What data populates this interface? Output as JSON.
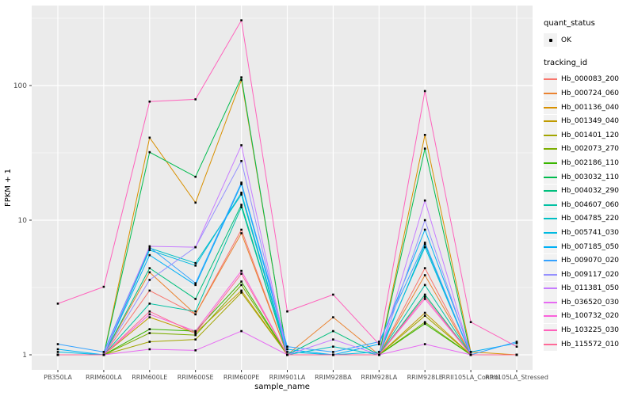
{
  "chart_data": {
    "type": "line",
    "title": "",
    "xlabel": "sample_name",
    "ylabel": "FPKM + 1",
    "y_scale": "log10",
    "y_ticks": [
      "1",
      "10",
      "100"
    ],
    "y_tick_values": [
      1,
      10,
      100
    ],
    "y_minor_values": [
      3.162,
      31.62,
      316.2
    ],
    "ylim_hint": [
      0.77,
      390
    ],
    "grid": true,
    "legend_position": "right",
    "categories": [
      "PB350LA",
      "RRIM600LA",
      "RRIM600LE",
      "RRIM600SE",
      "RRIM600PE",
      "RRIM901LA",
      "RRIM928BA",
      "RRIM928LA",
      "RRIM928LE",
      "RRII105LA_Control",
      "RRII105LA_Stressed"
    ],
    "series": [
      {
        "name": "Hb_000083_200",
        "color": "#F8766D",
        "values": [
          1,
          1,
          3.0,
          2.0,
          8.5,
          1,
          1,
          1,
          4.4,
          1,
          1
        ]
      },
      {
        "name": "Hb_000724_060",
        "color": "#EA8331",
        "values": [
          1,
          1,
          4.1,
          2.0,
          8.0,
          1,
          1.9,
          1,
          3.9,
          1,
          1
        ]
      },
      {
        "name": "Hb_001136_040",
        "color": "#D89000",
        "values": [
          1,
          1,
          41,
          13.5,
          110,
          1,
          1,
          1,
          43,
          1.05,
          1
        ]
      },
      {
        "name": "Hb_001349_040",
        "color": "#C09B00",
        "values": [
          1,
          1,
          1.9,
          1.45,
          3.0,
          1,
          1,
          1,
          2.05,
          1,
          1
        ]
      },
      {
        "name": "Hb_001401_120",
        "color": "#A3A500",
        "values": [
          1,
          1,
          1.25,
          1.3,
          2.9,
          1,
          1,
          1,
          1.95,
          1,
          1
        ]
      },
      {
        "name": "Hb_002073_270",
        "color": "#7CAE00",
        "values": [
          1,
          1,
          1.45,
          1.4,
          3.3,
          1,
          1,
          1,
          1.75,
          1,
          1
        ]
      },
      {
        "name": "Hb_002186_110",
        "color": "#39B600",
        "values": [
          1,
          1,
          1.55,
          1.5,
          3.5,
          1,
          1,
          1,
          1.7,
          1,
          1
        ]
      },
      {
        "name": "Hb_003032_110",
        "color": "#00BB4E",
        "values": [
          1,
          1,
          32,
          21,
          115,
          1,
          1,
          1,
          34,
          1,
          1
        ]
      },
      {
        "name": "Hb_004032_290",
        "color": "#00BF7D",
        "values": [
          1,
          1,
          4.4,
          2.6,
          13,
          1,
          1.5,
          1,
          2.8,
          1,
          1
        ]
      },
      {
        "name": "Hb_004607_060",
        "color": "#00C1A3",
        "values": [
          1,
          1,
          2.4,
          2.1,
          12.5,
          1,
          1,
          1,
          3.3,
          1,
          1
        ]
      },
      {
        "name": "Hb_004785_220",
        "color": "#00BFC4",
        "values": [
          1,
          1,
          6.2,
          4.8,
          15.5,
          1,
          1.15,
          1,
          6.6,
          1,
          1
        ]
      },
      {
        "name": "Hb_005741_030",
        "color": "#00BAE0",
        "values": [
          1.05,
          1,
          6.0,
          4.6,
          16,
          1.05,
          1,
          1.05,
          6.3,
          1,
          1
        ]
      },
      {
        "name": "Hb_007185_050",
        "color": "#00B0F6",
        "values": [
          1.1,
          1,
          5.5,
          3.3,
          18.5,
          1.1,
          1,
          1.2,
          8.5,
          1.05,
          1.22
        ]
      },
      {
        "name": "Hb_009070_020",
        "color": "#35A2FF",
        "values": [
          1.2,
          1.05,
          6.3,
          3.4,
          19,
          1.15,
          1.05,
          1.25,
          6.8,
          1,
          1.25
        ]
      },
      {
        "name": "Hb_009117_020",
        "color": "#9590FF",
        "values": [
          1,
          1,
          3.6,
          6.3,
          27.5,
          1,
          1,
          1,
          10,
          1,
          1
        ]
      },
      {
        "name": "Hb_011381_050",
        "color": "#C77CFF",
        "values": [
          1,
          1,
          6.4,
          6.3,
          36,
          1,
          1.3,
          1,
          14,
          1,
          1
        ]
      },
      {
        "name": "Hb_036520_030",
        "color": "#E76BF3",
        "values": [
          1,
          1,
          1.1,
          1.08,
          1.5,
          1,
          1,
          1,
          1.2,
          1,
          1
        ]
      },
      {
        "name": "Hb_100732_020",
        "color": "#FA62DB",
        "values": [
          1,
          1,
          2.0,
          1.5,
          4.2,
          1,
          1,
          1,
          2.6,
          1,
          1
        ]
      },
      {
        "name": "Hb_103225_030",
        "color": "#FF62BC",
        "values": [
          2.4,
          3.2,
          76,
          79,
          305,
          2.1,
          2.8,
          1.2,
          91,
          1.75,
          1.15
        ]
      },
      {
        "name": "Hb_115572_010",
        "color": "#FF6A98",
        "values": [
          1,
          1,
          2.1,
          1.45,
          4.0,
          1,
          1,
          1,
          2.7,
          1,
          1
        ]
      }
    ],
    "style": {
      "panel_bg": "#EBEBEB",
      "grid_major": "#FFFFFF",
      "grid_minor": "#F7F7F7",
      "tick_label_color": "#4D4D4D",
      "axis_title_color": "#000000",
      "point_color": "#000000",
      "legend_key_bg": "#F2F2F2"
    }
  },
  "legend": {
    "quant_status_title": "quant_status",
    "quant_status_items": [
      {
        "label": "OK"
      }
    ],
    "tracking_id_title": "tracking_id"
  }
}
